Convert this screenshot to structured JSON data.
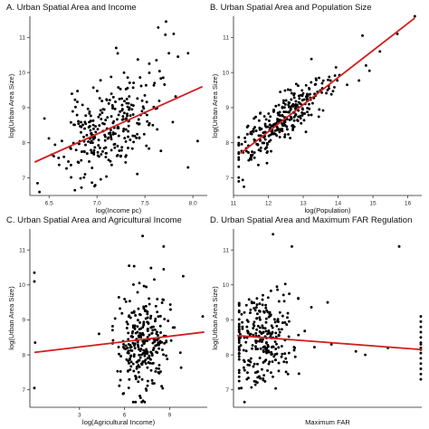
{
  "chart_data": [
    {
      "type": "scatter",
      "title": "A. Urban Spatial Area and Income",
      "xlabel": "log(Income pc)",
      "ylabel": "log(Urban Area Size)",
      "xlim": [
        6.3,
        8.15
      ],
      "ylim": [
        6.5,
        11.6
      ],
      "xticks": [
        6.5,
        7.0,
        7.5,
        8.0
      ],
      "xtick_labels": [
        "6.5",
        "7.0",
        "7.5",
        "8.0"
      ],
      "yticks": [
        7,
        8,
        9,
        10,
        11
      ],
      "ytick_labels": [
        "7",
        "8",
        "9",
        "10",
        "11"
      ],
      "fit_line": {
        "x": [
          6.35,
          8.1
        ],
        "y": [
          7.45,
          9.6
        ]
      },
      "cloud": {
        "seed": 11,
        "n": 290,
        "x_mean": 7.12,
        "x_sd": 0.25,
        "x_min": 6.35,
        "x_max": 8.1,
        "slope": 1.23,
        "intercept": -0.36,
        "noise": 0.65
      },
      "extra_points": [
        {
          "x": 7.72,
          "y": 11.45
        },
        {
          "x": 7.8,
          "y": 11.1
        },
        {
          "x": 7.75,
          "y": 10.55
        },
        {
          "x": 7.62,
          "y": 10.35
        },
        {
          "x": 7.95,
          "y": 10.55
        },
        {
          "x": 8.05,
          "y": 8.05
        },
        {
          "x": 7.95,
          "y": 7.3
        },
        {
          "x": 6.38,
          "y": 6.85
        },
        {
          "x": 6.4,
          "y": 6.6
        },
        {
          "x": 7.6,
          "y": 9.7
        },
        {
          "x": 7.2,
          "y": 10.7
        }
      ]
    },
    {
      "type": "scatter",
      "title": "B. Urban Spatial Area and Population Size",
      "xlabel": "log(Population)",
      "ylabel": "log(Urban Area Size)",
      "xlim": [
        11.0,
        16.4
      ],
      "ylim": [
        6.5,
        11.6
      ],
      "xticks": [
        11,
        12,
        13,
        14,
        15,
        16
      ],
      "xtick_labels": [
        "11",
        "12",
        "13",
        "14",
        "15",
        "16"
      ],
      "yticks": [
        7,
        8,
        9,
        10,
        11
      ],
      "ytick_labels": [
        "7",
        "8",
        "9",
        "10",
        "11"
      ],
      "fit_line": {
        "x": [
          11.2,
          16.2
        ],
        "y": [
          7.7,
          11.55
        ]
      },
      "cloud": {
        "seed": 23,
        "n": 300,
        "x_mean": 12.35,
        "x_sd": 0.7,
        "x_min": 11.15,
        "x_max": 14.6,
        "slope": 0.77,
        "intercept": -0.92,
        "noise": 0.34
      },
      "extra_points": [
        {
          "x": 14.8,
          "y": 10.2
        },
        {
          "x": 14.9,
          "y": 10.05
        },
        {
          "x": 14.7,
          "y": 11.05
        },
        {
          "x": 15.2,
          "y": 10.6
        },
        {
          "x": 15.7,
          "y": 11.1
        },
        {
          "x": 16.2,
          "y": 11.6
        },
        {
          "x": 13.7,
          "y": 9.5
        },
        {
          "x": 11.3,
          "y": 6.75
        }
      ]
    },
    {
      "type": "scatter",
      "title": "C. Urban Spatial Area and Agricultural Income",
      "xlabel": "log(Agricultural Income)",
      "ylabel": "log(Urban Area Size)",
      "xlim": [
        -0.3,
        11.5
      ],
      "ylim": [
        6.5,
        11.6
      ],
      "xticks": [
        3,
        6,
        9
      ],
      "xtick_labels": [
        "3",
        "6",
        "9"
      ],
      "yticks": [
        7,
        8,
        9,
        10,
        11
      ],
      "ytick_labels": [
        "7",
        "8",
        "9",
        "10",
        "11"
      ],
      "fit_line": {
        "x": [
          0.0,
          11.3
        ],
        "y": [
          8.07,
          8.65
        ]
      },
      "cloud": {
        "seed": 37,
        "n": 290,
        "x_mean": 7.3,
        "x_sd": 0.85,
        "x_min": 5.2,
        "x_max": 10.2,
        "slope": 0.05,
        "intercept": 8.0,
        "noise": 0.72
      },
      "extra_points": [
        {
          "x": 0.0,
          "y": 10.35
        },
        {
          "x": 0.0,
          "y": 10.1
        },
        {
          "x": 0.05,
          "y": 8.35
        },
        {
          "x": 0.0,
          "y": 7.05
        },
        {
          "x": 11.2,
          "y": 9.1
        },
        {
          "x": 9.9,
          "y": 10.25
        },
        {
          "x": 8.6,
          "y": 11.1
        },
        {
          "x": 7.2,
          "y": 11.4
        },
        {
          "x": 4.3,
          "y": 8.6
        }
      ]
    },
    {
      "type": "scatter",
      "title": "D. Urban Spatial Area and Maximum FAR Regulation",
      "xlabel": "Maximum FAR",
      "ylabel": "log(Urban Area Size)",
      "xlim": [
        0.0,
        10.0
      ],
      "ylim": [
        6.5,
        11.6
      ],
      "xticks": [],
      "xtick_labels": [],
      "yticks": [
        7,
        8,
        9,
        10,
        11
      ],
      "ytick_labels": [
        "7",
        "8",
        "9",
        "10",
        "11"
      ],
      "fit_line": {
        "x": [
          0.2,
          10.0
        ],
        "y": [
          8.55,
          8.15
        ]
      },
      "cloud": {
        "seed": 53,
        "n": 270,
        "x_mean": 1.4,
        "x_sd": 0.9,
        "x_min": 0.3,
        "x_max": 4.3,
        "slope": 0.0,
        "intercept": 8.45,
        "noise": 0.65
      },
      "extra_points": [
        {
          "x": 9.95,
          "y": 9.1
        },
        {
          "x": 9.95,
          "y": 8.95
        },
        {
          "x": 9.95,
          "y": 8.8
        },
        {
          "x": 9.95,
          "y": 8.65
        },
        {
          "x": 9.95,
          "y": 8.5
        },
        {
          "x": 9.95,
          "y": 8.35
        },
        {
          "x": 9.95,
          "y": 8.2
        },
        {
          "x": 9.95,
          "y": 8.05
        },
        {
          "x": 9.95,
          "y": 7.9
        },
        {
          "x": 9.95,
          "y": 7.75
        },
        {
          "x": 9.95,
          "y": 7.6
        },
        {
          "x": 9.95,
          "y": 7.45
        },
        {
          "x": 9.95,
          "y": 7.3
        },
        {
          "x": 9.95,
          "y": 8.3
        },
        {
          "x": 9.95,
          "y": 8.15
        },
        {
          "x": 5.0,
          "y": 9.5
        },
        {
          "x": 5.2,
          "y": 8.3
        },
        {
          "x": 7.0,
          "y": 8.0
        },
        {
          "x": 8.2,
          "y": 8.2
        },
        {
          "x": 8.8,
          "y": 11.1
        },
        {
          "x": 6.5,
          "y": 8.1
        },
        {
          "x": 2.1,
          "y": 11.45
        },
        {
          "x": 3.1,
          "y": 11.1
        }
      ]
    }
  ]
}
